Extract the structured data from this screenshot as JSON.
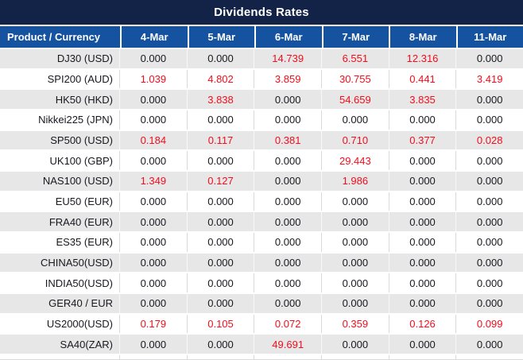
{
  "title": "Dividends Rates",
  "colors": {
    "title_bg": "#122347",
    "header_bg": "#1553a1",
    "header_text": "#ffffff",
    "row_alt_bg": "#e7e7e7",
    "row_bg": "#ffffff",
    "zero_text": "#18181f",
    "nonzero_text": "#f20d1c"
  },
  "table": {
    "product_header": "Product / Currency",
    "date_headers": [
      "4-Mar",
      "5-Mar",
      "6-Mar",
      "7-Mar",
      "8-Mar",
      "11-Mar"
    ],
    "rows": [
      {
        "product": "DJ30 (USD)",
        "values": [
          "0.000",
          "0.000",
          "14.739",
          "6.551",
          "12.316",
          "0.000"
        ]
      },
      {
        "product": "SPI200 (AUD)",
        "values": [
          "1.039",
          "4.802",
          "3.859",
          "30.755",
          "0.441",
          "3.419"
        ]
      },
      {
        "product": "HK50 (HKD)",
        "values": [
          "0.000",
          "3.838",
          "0.000",
          "54.659",
          "3.835",
          "0.000"
        ]
      },
      {
        "product": "Nikkei225 (JPN)",
        "values": [
          "0.000",
          "0.000",
          "0.000",
          "0.000",
          "0.000",
          "0.000"
        ]
      },
      {
        "product": "SP500 (USD)",
        "values": [
          "0.184",
          "0.117",
          "0.381",
          "0.710",
          "0.377",
          "0.028"
        ]
      },
      {
        "product": "UK100 (GBP)",
        "values": [
          "0.000",
          "0.000",
          "0.000",
          "29.443",
          "0.000",
          "0.000"
        ]
      },
      {
        "product": "NAS100 (USD)",
        "values": [
          "1.349",
          "0.127",
          "0.000",
          "1.986",
          "0.000",
          "0.000"
        ]
      },
      {
        "product": "EU50 (EUR)",
        "values": [
          "0.000",
          "0.000",
          "0.000",
          "0.000",
          "0.000",
          "0.000"
        ]
      },
      {
        "product": "FRA40 (EUR)",
        "values": [
          "0.000",
          "0.000",
          "0.000",
          "0.000",
          "0.000",
          "0.000"
        ]
      },
      {
        "product": "ES35 (EUR)",
        "values": [
          "0.000",
          "0.000",
          "0.000",
          "0.000",
          "0.000",
          "0.000"
        ]
      },
      {
        "product": "CHINA50(USD)",
        "values": [
          "0.000",
          "0.000",
          "0.000",
          "0.000",
          "0.000",
          "0.000"
        ]
      },
      {
        "product": "INDIA50(USD)",
        "values": [
          "0.000",
          "0.000",
          "0.000",
          "0.000",
          "0.000",
          "0.000"
        ]
      },
      {
        "product": "GER40 / EUR",
        "values": [
          "0.000",
          "0.000",
          "0.000",
          "0.000",
          "0.000",
          "0.000"
        ]
      },
      {
        "product": "US2000(USD)",
        "values": [
          "0.179",
          "0.105",
          "0.072",
          "0.359",
          "0.126",
          "0.099"
        ]
      },
      {
        "product": "SA40(ZAR)",
        "values": [
          "0.000",
          "0.000",
          "49.691",
          "0.000",
          "0.000",
          "0.000"
        ]
      }
    ]
  }
}
